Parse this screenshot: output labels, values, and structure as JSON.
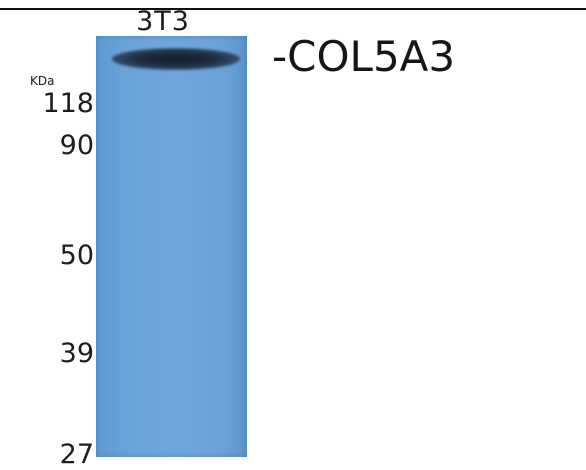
{
  "lane_label": "3T3",
  "unit": "KDa",
  "protein": "-COL5A3",
  "markers": [
    {
      "label": "118",
      "kda": 118
    },
    {
      "label": "90",
      "kda": 90
    },
    {
      "label": "50",
      "kda": 50
    },
    {
      "label": "39",
      "kda": 39
    },
    {
      "label": "27",
      "kda": 27
    }
  ],
  "colors": {
    "membrane": "#6ea7dc",
    "band": "#1a2535"
  }
}
